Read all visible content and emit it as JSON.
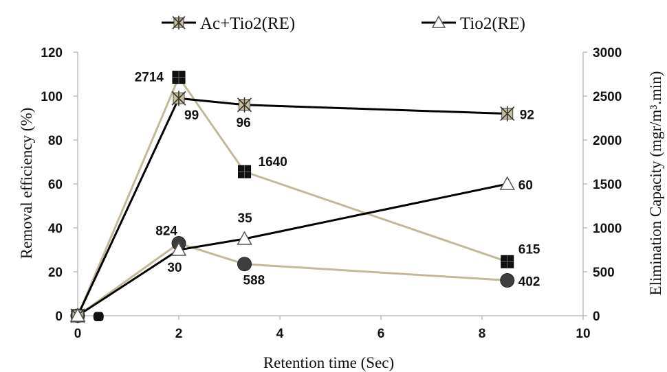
{
  "chart_data": {
    "type": "line",
    "xlabel": "Retention time (Sec)",
    "ylabel_left": "Removal efficiency (%)",
    "ylabel_right": "Elimination Capacity (mgr/m³.min)",
    "x_range": [
      0,
      10
    ],
    "x_ticks": [
      0,
      2,
      4,
      6,
      8,
      10
    ],
    "y_left_range": [
      0,
      120
    ],
    "y_left_ticks": [
      0,
      20,
      40,
      60,
      80,
      100,
      120
    ],
    "y_right_range": [
      0,
      3000
    ],
    "y_right_ticks": [
      0,
      500,
      1000,
      1500,
      2000,
      2500,
      3000
    ],
    "grid": false,
    "legend_placement": "top",
    "legend_entries": [
      "Ac+Tio2(RE)",
      "Tio2(RE)"
    ],
    "series": [
      {
        "name": "Ac+Tio2(RE)",
        "axis": "left",
        "marker": "asterisk-square",
        "line_color": "#000000",
        "x": [
          0,
          2,
          3.3,
          8.5
        ],
        "y": [
          0,
          99,
          96,
          92
        ],
        "labels": [
          "0",
          "99",
          "96",
          "92"
        ]
      },
      {
        "name": "Tio2(RE)",
        "axis": "left",
        "marker": "triangle",
        "line_color": "#000000",
        "x": [
          0,
          2,
          3.3,
          8.5
        ],
        "y": [
          0,
          30,
          35,
          60
        ],
        "labels": [
          "0",
          "30",
          "35",
          "60"
        ]
      },
      {
        "axis": "right",
        "marker": "square",
        "line_color": "#c2b89a",
        "x": [
          0,
          2,
          3.3,
          8.5
        ],
        "y": [
          0,
          2714,
          1640,
          615
        ],
        "labels": [
          "0",
          "2714",
          "1640",
          "615"
        ]
      },
      {
        "axis": "right",
        "marker": "circle",
        "line_color": "#c2b89a",
        "x": [
          0,
          2,
          3.3,
          8.5
        ],
        "y": [
          0,
          824,
          588,
          402
        ],
        "labels": [
          "0",
          "824",
          "588",
          "402"
        ]
      }
    ]
  }
}
